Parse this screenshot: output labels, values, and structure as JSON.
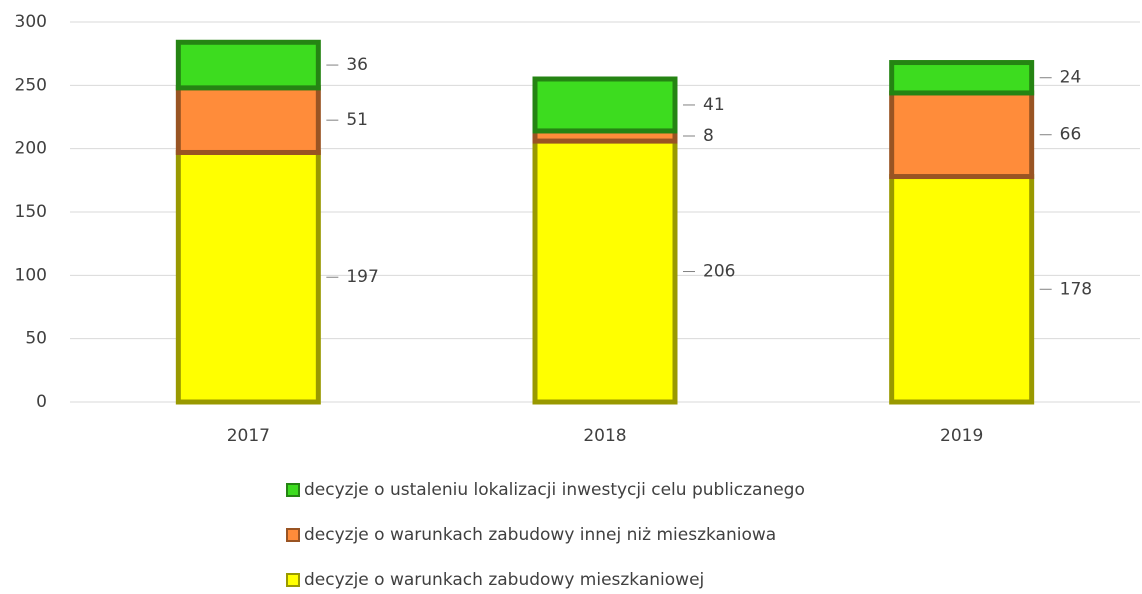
{
  "chart_data": {
    "type": "bar",
    "stacked": true,
    "categories": [
      "2017",
      "2018",
      "2019"
    ],
    "series": [
      {
        "name": "decyzje o warunkach zabudowy mieszkaniowej",
        "color": "#ffff00",
        "values": [
          197,
          206,
          178
        ]
      },
      {
        "name": "decyzje o warunkach zabudowy innej niż mieszkaniowa",
        "color": "#ff8c3a",
        "values": [
          51,
          8,
          66
        ]
      },
      {
        "name": "decyzje o ustaleniu lokalizacji inwestycji celu publiczanego",
        "color": "#3ddc1f",
        "values": [
          36,
          41,
          24
        ]
      }
    ],
    "ylim": [
      0,
      300
    ],
    "yticks": [
      0,
      50,
      100,
      150,
      200,
      250,
      300
    ],
    "grid": true,
    "legend": "bottom"
  }
}
